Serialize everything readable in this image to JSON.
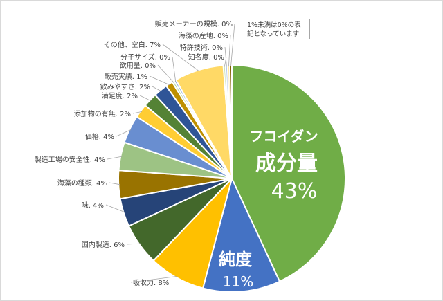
{
  "chart_data": {
    "type": "pie",
    "note": "1%未満は0%の表記となっています",
    "slices": [
      {
        "name": "成分量",
        "value": 43,
        "label": "",
        "color": "#70ad47",
        "big_prefix": "フコイダン",
        "big_name": "成分量",
        "big_pct": "43%"
      },
      {
        "name": "純度",
        "value": 11,
        "label": "",
        "color": "#4472c4",
        "big_name": "純度",
        "big_pct": "11%"
      },
      {
        "name": "吸収力",
        "value": 8,
        "label": "吸収力. 8%",
        "color": "#ffc000"
      },
      {
        "name": "国内製造",
        "value": 6,
        "label": "国内製造. 6%",
        "color": "#43682b"
      },
      {
        "name": "味",
        "value": 4,
        "label": "味. 4%",
        "color": "#264478"
      },
      {
        "name": "海藻の種類",
        "value": 4,
        "label": "海藻の種類. 4%",
        "color": "#997300"
      },
      {
        "name": "製造工場の安全性",
        "value": 4,
        "label": "製造工場の安全性. 4%",
        "color": "#9dc384"
      },
      {
        "name": "価格",
        "value": 4,
        "label": "価格. 4%",
        "color": "#698ed0"
      },
      {
        "name": "添加物の有無",
        "value": 2,
        "label": "添加物の有無. 2%",
        "color": "#ffcd33"
      },
      {
        "name": "満足度",
        "value": 2,
        "label": "満足度. 2%",
        "color": "#548235"
      },
      {
        "name": "飲みやすさ",
        "value": 2,
        "label": "飲みやすさ. 2%",
        "color": "#2f5597"
      },
      {
        "name": "販売実績",
        "value": 1,
        "label": "販売実績. 1%",
        "color": "#bf9000"
      },
      {
        "name": "飲用量",
        "value": 0.3,
        "label": "飲用量. 0%",
        "color": "#a9d18e"
      },
      {
        "name": "分子サイズ",
        "value": 0.3,
        "label": "分子サイズ. 0%",
        "color": "#8faadc"
      },
      {
        "name": "その他、空白",
        "value": 7,
        "label": "その他、空白. 7%",
        "color": "#ffd966"
      },
      {
        "name": "知名度",
        "value": 0.3,
        "label": "知名度. 0%",
        "color": "#c5e0b4"
      },
      {
        "name": "特許技術",
        "value": 0.3,
        "label": "特許技術. 0%",
        "color": "#b4c7e7"
      },
      {
        "name": "海藻の産地",
        "value": 0.3,
        "label": "海藻の産地. 0%",
        "color": "#ffe699"
      },
      {
        "name": "販売メーカーの規模",
        "value": 0.3,
        "label": "販売メーカーの規模. 0%",
        "color": "#7f6000"
      }
    ]
  }
}
